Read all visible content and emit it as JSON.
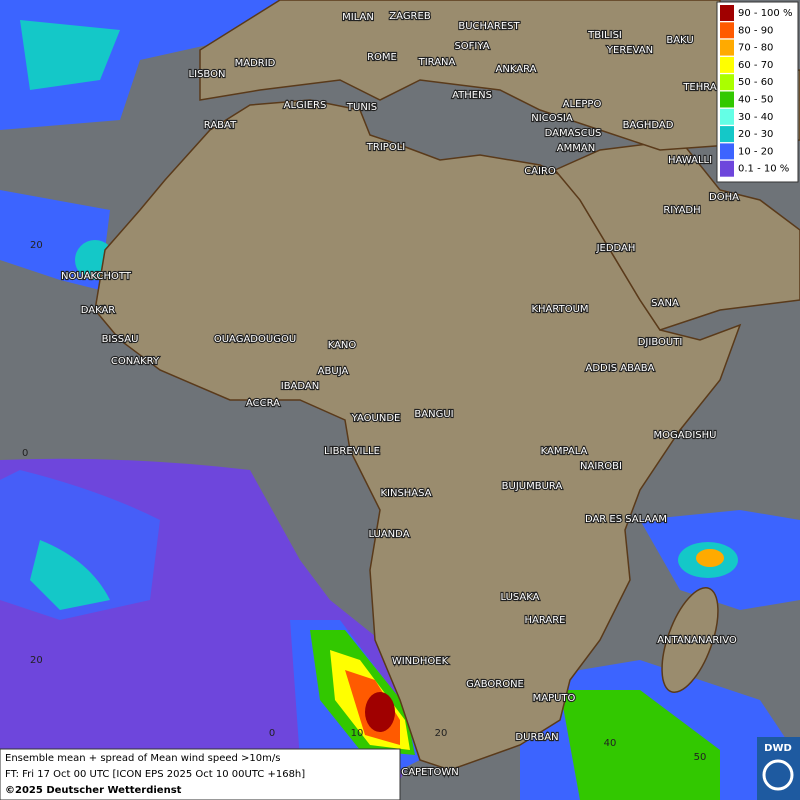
{
  "map": {
    "cities": [
      "MILAN",
      "ZAGREB",
      "BUCHAREST",
      "TBILISI",
      "BAKU",
      "SOFIYA",
      "YEREVAN",
      "MADRID",
      "ROME",
      "TIRANA",
      "ANKARA",
      "TEHRA",
      "LISBON",
      "ATHENS",
      "ALGIERS",
      "TUNIS",
      "ALEPPO",
      "RABAT",
      "NICOSIA",
      "BAGHDAD",
      "DAMASCUS",
      "TRIPOLI",
      "AMMAN",
      "HAWALLI",
      "CAIRO",
      "DOHA",
      "RIYADH",
      "NOUAKCHOTT",
      "JEDDAH",
      "SANA",
      "DAKAR",
      "KHARTOUM",
      "BISSAU",
      "DJIBOUTI",
      "OUAGADOUGOU",
      "KANO",
      "CONAKRY",
      "ADDIS ABABA",
      "ABUJA",
      "IBADAN",
      "ACCRA",
      "YAOUNDE",
      "BANGUI",
      "MOGADISHU",
      "LIBREVILLE",
      "KAMPALA",
      "NAIROBI",
      "KINSHASA",
      "BUJUMBURA",
      "DAR ES SALAAM",
      "LUANDA",
      "LUSAKA",
      "HARARE",
      "ANTANANARIVO",
      "WINDHOEK",
      "GABORONE",
      "MAPUTO",
      "DURBAN",
      "CAPETOWN"
    ],
    "lat_labels": [
      "20",
      "0",
      "20"
    ],
    "lon_labels": [
      "0",
      "10",
      "20",
      "40",
      "50"
    ],
    "legend": [
      {
        "label": "90 - 100 %",
        "color": "#a00000"
      },
      {
        "label": "80 - 90",
        "color": "#ff5a00"
      },
      {
        "label": "70 - 80",
        "color": "#ffaa00"
      },
      {
        "label": "60 - 70",
        "color": "#ffff00"
      },
      {
        "label": "50 - 60",
        "color": "#aaff00"
      },
      {
        "label": "40 - 50",
        "color": "#32c800"
      },
      {
        "label": "30 - 40",
        "color": "#64ffe6"
      },
      {
        "label": "20 - 30",
        "color": "#14c8c8"
      },
      {
        "label": "10 - 20",
        "color": "#3c64ff"
      },
      {
        "label": "0.1 - 10 %",
        "color": "#6e46dc"
      }
    ],
    "footer": [
      "Ensemble mean + spread of Mean wind speed >10m/s",
      "FT: Fri 17 Oct 00 UTC [ICON EPS 2025 Oct 10 00UTC +168h]",
      "©2025 Deutscher Wetterdienst"
    ],
    "logo": "DWD"
  }
}
